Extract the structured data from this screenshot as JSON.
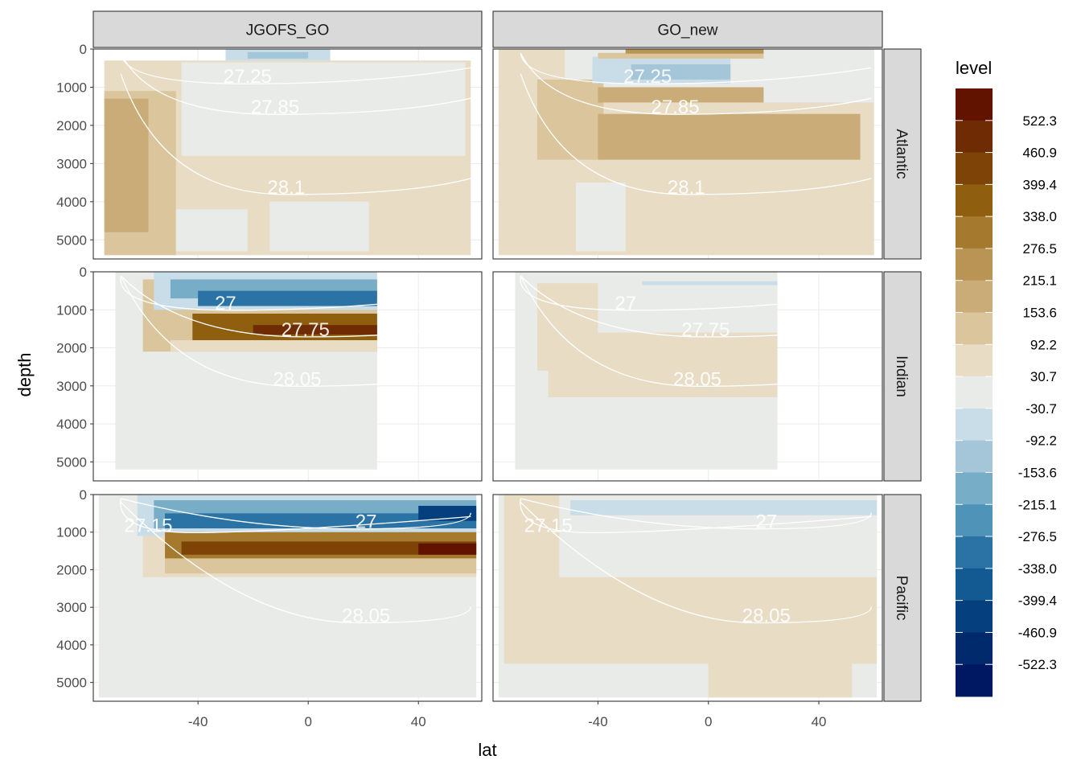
{
  "chart_data": {
    "type": "heatmap",
    "xlabel": "lat",
    "ylabel": "depth",
    "x_ticks": [
      -40,
      0,
      40
    ],
    "y_ticks": [
      0,
      1000,
      2000,
      3000,
      4000,
      5000
    ],
    "xlim": [
      -78,
      63
    ],
    "ylim": [
      5500,
      0
    ],
    "columns": [
      "JGOFS_GO",
      "GO_new"
    ],
    "rows": [
      "Atlantic",
      "Indian",
      "Pacific"
    ],
    "legend": {
      "title": "level",
      "labels": [
        "522.3",
        "460.9",
        "399.4",
        "338.0",
        "276.5",
        "215.1",
        "153.6",
        "92.2",
        "30.7",
        "-30.7",
        "-92.2",
        "-153.6",
        "-215.1",
        "-276.5",
        "-338.0",
        "-399.4",
        "-460.9",
        "-522.3"
      ],
      "colors": [
        "#611300",
        "#6f2c04",
        "#7e4306",
        "#8f5e0f",
        "#a67a2e",
        "#ba9454",
        "#c9ac78",
        "#dac59c",
        "#e8dcc5",
        "#e8ebe8",
        "#c9dde9",
        "#a5c6d8",
        "#78adc8",
        "#4f93b8",
        "#2a73a4",
        "#135992",
        "#063f7e",
        "#012a6c",
        "#001861"
      ]
    },
    "panels": [
      {
        "column": "JGOFS_GO",
        "row": "Atlantic",
        "contour_labels": [
          {
            "text": "27.25",
            "lat": -22,
            "depth": 700
          },
          {
            "text": "27.85",
            "lat": -12,
            "depth": 1500
          },
          {
            "text": "28.1",
            "lat": -8,
            "depth": 3600
          }
        ],
        "blocks": [
          {
            "level": 30.7,
            "lat": [
              -74,
              59
            ],
            "depth": [
              300,
              5400
            ]
          },
          {
            "level": -30.7,
            "lat": [
              -46,
              57
            ],
            "depth": [
              350,
              2800
            ]
          },
          {
            "level": 92.2,
            "lat": [
              -74,
              -48
            ],
            "depth": [
              1100,
              5400
            ]
          },
          {
            "level": 153.6,
            "lat": [
              -74,
              -58
            ],
            "depth": [
              1300,
              4800
            ]
          },
          {
            "level": 30.7,
            "lat": [
              -48,
              56
            ],
            "depth": [
              2800,
              4600
            ]
          },
          {
            "level": -30.7,
            "lat": [
              -14,
              22
            ],
            "depth": [
              4000,
              5300
            ]
          },
          {
            "level": -30.7,
            "lat": [
              -48,
              -22
            ],
            "depth": [
              4200,
              5300
            ]
          },
          {
            "level": -92.2,
            "lat": [
              -30,
              8
            ],
            "depth": [
              0,
              300
            ]
          },
          {
            "level": -153.6,
            "lat": [
              -22,
              0
            ],
            "depth": [
              80,
              250
            ]
          }
        ]
      },
      {
        "column": "GO_new",
        "row": "Atlantic",
        "contour_labels": [
          {
            "text": "27.25",
            "lat": -22,
            "depth": 700
          },
          {
            "text": "27.85",
            "lat": -12,
            "depth": 1500
          },
          {
            "text": "28.1",
            "lat": -8,
            "depth": 3600
          }
        ],
        "blocks": [
          {
            "level": 30.7,
            "lat": [
              -76,
              60
            ],
            "depth": [
              0,
              5400
            ]
          },
          {
            "level": -30.7,
            "lat": [
              -52,
              60
            ],
            "depth": [
              0,
              1400
            ]
          },
          {
            "level": 92.2,
            "lat": [
              -62,
              -38
            ],
            "depth": [
              800,
              2900
            ]
          },
          {
            "level": 153.6,
            "lat": [
              -40,
              55
            ],
            "depth": [
              1700,
              2900
            ]
          },
          {
            "level": -92.2,
            "lat": [
              -42,
              8
            ],
            "depth": [
              200,
              900
            ]
          },
          {
            "level": -153.6,
            "lat": [
              -28,
              8
            ],
            "depth": [
              400,
              800
            ]
          },
          {
            "level": 92.2,
            "lat": [
              -40,
              20
            ],
            "depth": [
              100,
              250
            ]
          },
          {
            "level": 215.1,
            "lat": [
              -30,
              20
            ],
            "depth": [
              0,
              120
            ]
          },
          {
            "level": 153.6,
            "lat": [
              -40,
              20
            ],
            "depth": [
              1000,
              1400
            ]
          },
          {
            "level": -30.7,
            "lat": [
              -48,
              -30
            ],
            "depth": [
              3500,
              5300
            ]
          }
        ]
      },
      {
        "column": "JGOFS_GO",
        "row": "Indian",
        "contour_labels": [
          {
            "text": "27",
            "lat": -30,
            "depth": 800
          },
          {
            "text": "27.75",
            "lat": -1,
            "depth": 1500
          },
          {
            "text": "28.05",
            "lat": -4,
            "depth": 2800
          }
        ],
        "blocks": [
          {
            "level": -30.7,
            "lat": [
              -70,
              25
            ],
            "depth": [
              0,
              5200
            ]
          },
          {
            "level": 92.2,
            "lat": [
              -60,
              25
            ],
            "depth": [
              200,
              2100
            ]
          },
          {
            "level": -92.2,
            "lat": [
              -56,
              25
            ],
            "depth": [
              0,
              1000
            ]
          },
          {
            "level": -215.1,
            "lat": [
              -50,
              25
            ],
            "depth": [
              200,
              700
            ]
          },
          {
            "level": -338.0,
            "lat": [
              -40,
              25
            ],
            "depth": [
              500,
              900
            ]
          },
          {
            "level": 338.0,
            "lat": [
              -42,
              25
            ],
            "depth": [
              1100,
              1800
            ]
          },
          {
            "level": 460.9,
            "lat": [
              -20,
              25
            ],
            "depth": [
              1400,
              1650
            ]
          },
          {
            "level": 30.7,
            "lat": [
              -50,
              25
            ],
            "depth": [
              1800,
              2100
            ]
          }
        ]
      },
      {
        "column": "GO_new",
        "row": "Indian",
        "contour_labels": [
          {
            "text": "27",
            "lat": -30,
            "depth": 800
          },
          {
            "text": "27.75",
            "lat": -1,
            "depth": 1500
          },
          {
            "text": "28.05",
            "lat": -4,
            "depth": 2800
          }
        ],
        "blocks": [
          {
            "level": -30.7,
            "lat": [
              -70,
              25
            ],
            "depth": [
              0,
              5200
            ]
          },
          {
            "level": 30.7,
            "lat": [
              -58,
              25
            ],
            "depth": [
              1600,
              3300
            ]
          },
          {
            "level": 30.7,
            "lat": [
              -62,
              -40
            ],
            "depth": [
              300,
              2600
            ]
          },
          {
            "level": -92.2,
            "lat": [
              -24,
              25
            ],
            "depth": [
              250,
              350
            ]
          }
        ]
      },
      {
        "column": "JGOFS_GO",
        "row": "Pacific",
        "contour_labels": [
          {
            "text": "27.15",
            "lat": -58,
            "depth": 800
          },
          {
            "text": "27",
            "lat": 21,
            "depth": 700
          },
          {
            "text": "28.05",
            "lat": 21,
            "depth": 3200
          }
        ],
        "blocks": [
          {
            "level": -30.7,
            "lat": [
              -76,
              61
            ],
            "depth": [
              0,
              5400
            ]
          },
          {
            "level": 30.7,
            "lat": [
              -60,
              61
            ],
            "depth": [
              0,
              2200
            ]
          },
          {
            "level": -92.2,
            "lat": [
              -62,
              61
            ],
            "depth": [
              0,
              1100
            ]
          },
          {
            "level": -215.1,
            "lat": [
              -56,
              61
            ],
            "depth": [
              150,
              900
            ]
          },
          {
            "level": -338.0,
            "lat": [
              -52,
              61
            ],
            "depth": [
              500,
              900
            ]
          },
          {
            "level": -460.9,
            "lat": [
              40,
              61
            ],
            "depth": [
              300,
              700
            ]
          },
          {
            "level": 276.5,
            "lat": [
              -52,
              61
            ],
            "depth": [
              1000,
              1700
            ]
          },
          {
            "level": 399.4,
            "lat": [
              -46,
              61
            ],
            "depth": [
              1250,
              1600
            ]
          },
          {
            "level": 522.3,
            "lat": [
              40,
              61
            ],
            "depth": [
              1300,
              1600
            ]
          },
          {
            "level": 92.2,
            "lat": [
              -52,
              61
            ],
            "depth": [
              1700,
              2100
            ]
          }
        ]
      },
      {
        "column": "GO_new",
        "row": "Pacific",
        "contour_labels": [
          {
            "text": "27.15",
            "lat": -58,
            "depth": 800
          },
          {
            "text": "27",
            "lat": 21,
            "depth": 700
          },
          {
            "text": "28.05",
            "lat": 21,
            "depth": 3200
          }
        ],
        "blocks": [
          {
            "level": -30.7,
            "lat": [
              -76,
              61
            ],
            "depth": [
              0,
              5400
            ]
          },
          {
            "level": 30.7,
            "lat": [
              -74,
              61
            ],
            "depth": [
              0,
              4500
            ]
          },
          {
            "level": -30.7,
            "lat": [
              -54,
              61
            ],
            "depth": [
              0,
              2200
            ]
          },
          {
            "level": -92.2,
            "lat": [
              -50,
              61
            ],
            "depth": [
              150,
              550
            ]
          },
          {
            "level": 30.7,
            "lat": [
              -74,
              -56
            ],
            "depth": [
              200,
              3200
            ]
          },
          {
            "level": 30.7,
            "lat": [
              0,
              52
            ],
            "depth": [
              4400,
              5400
            ]
          }
        ]
      }
    ]
  }
}
